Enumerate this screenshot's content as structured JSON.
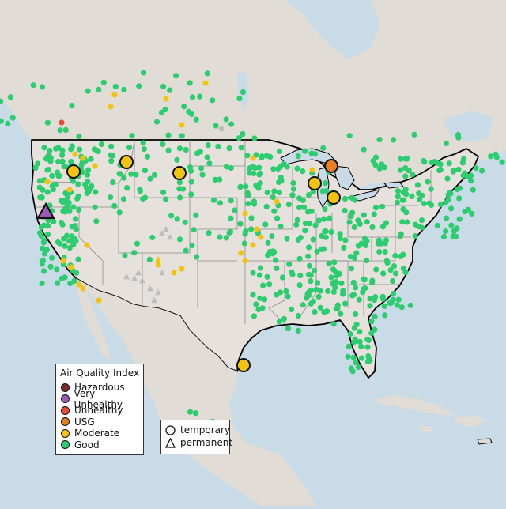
{
  "legend": {
    "title": "Air Quality Index",
    "categories": [
      {
        "label": "Hazardous",
        "color": "#7e2a2e"
      },
      {
        "label": "Very Unhealthy",
        "color": "#9b59b6"
      },
      {
        "label": "Unhealthy",
        "color": "#e74c3c"
      },
      {
        "label": "USG",
        "color": "#e67e22"
      },
      {
        "label": "Moderate",
        "color": "#f1c40f"
      },
      {
        "label": "Good",
        "color": "#2ecc71"
      }
    ]
  },
  "monitor_types": [
    {
      "label": "temporary",
      "shape": "circle"
    },
    {
      "label": "permanent",
      "shape": "triangle"
    }
  ],
  "colors": {
    "water": "#c9dbe7",
    "land": "#e6e1dc",
    "land_other": "#e1dcd6",
    "border": "#000000",
    "state_line": "#8a8a8a",
    "no_data": "#bdbdbd"
  }
}
